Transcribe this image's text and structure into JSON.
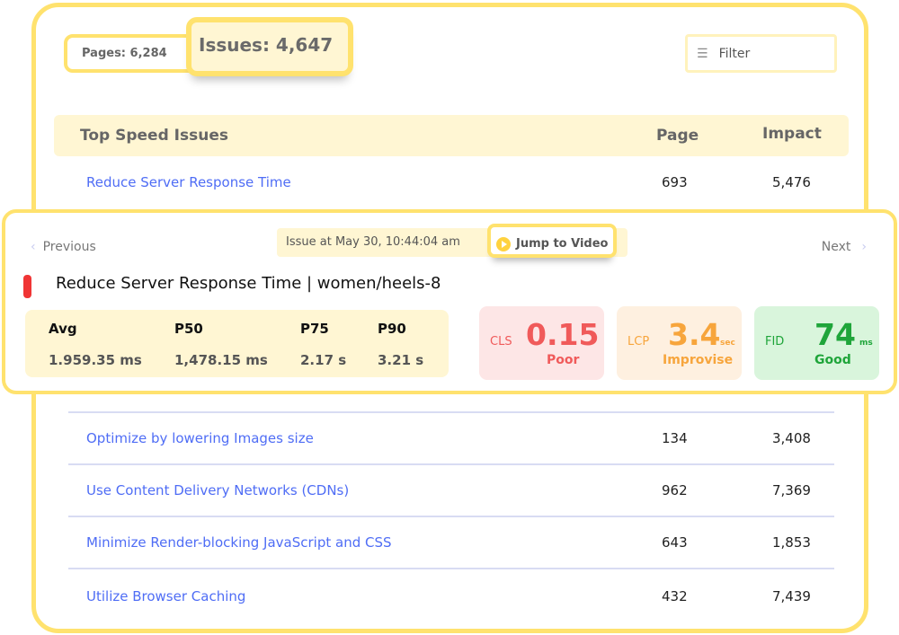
{
  "summary": {
    "pages": "Pages: 6,284",
    "issues": "Issues: 4,647",
    "filter": "Filter"
  },
  "table": {
    "headers": {
      "name": "Top Speed Issues",
      "page": "Page",
      "impact": "Impact"
    },
    "rows": [
      {
        "name": "Reduce Server Response Time",
        "page": "693",
        "impact": "5,476"
      },
      {
        "name": "Optimize by lowering Images size",
        "page": "134",
        "impact": "3,408"
      },
      {
        "name": "Use Content Delivery Networks (CDNs)",
        "page": "962",
        "impact": "7,369"
      },
      {
        "name": "Minimize Render-blocking JavaScript and CSS",
        "page": "643",
        "impact": "1,853"
      },
      {
        "name": "Utilize Browser Caching",
        "page": "432",
        "impact": "7,439"
      }
    ]
  },
  "detail": {
    "previous": "Previous",
    "next": "Next",
    "timestamp": "Issue at May 30, 10:44:04 am",
    "jump": "Jump to Video",
    "title": "Reduce Server Response Time |  women/heels-8",
    "severity_color": "#f03535",
    "stats": [
      {
        "label": "Avg",
        "value": "1.959.35 ms"
      },
      {
        "label": "P50",
        "value": "1,478.15 ms"
      },
      {
        "label": "P75",
        "value": "2.17 s"
      },
      {
        "label": "P90",
        "value": "3.21 s"
      }
    ],
    "metrics": [
      {
        "label": "CLS",
        "value": "0.15",
        "unit": "",
        "status": "Poor",
        "color": "#f05a5a",
        "bg": "#fde6e6"
      },
      {
        "label": "LCP",
        "value": "3.4",
        "unit": "sec",
        "status": "Improvise",
        "color": "#f7a53c",
        "bg": "#fef0e0"
      },
      {
        "label": "FID",
        "value": "74",
        "unit": "ms",
        "status": "Good",
        "color": "#1fa53a",
        "bg": "#d9f5dc"
      }
    ]
  }
}
